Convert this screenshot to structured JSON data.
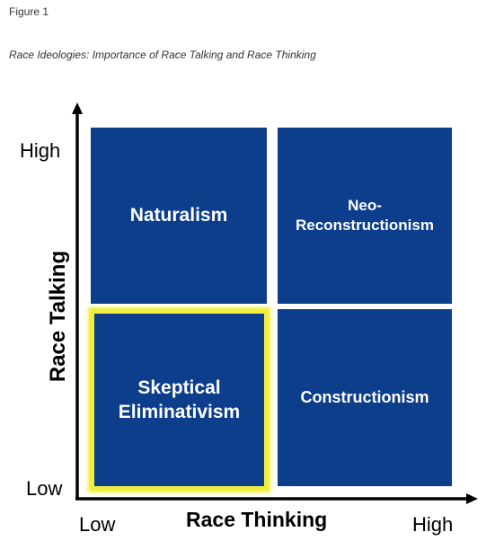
{
  "figure_label": "Figure 1",
  "caption": "Race Ideologies: Importance of Race Talking and Race Thinking",
  "colors": {
    "quadrant_fill": "#0d3e8c",
    "highlight_border": "#f1ed3c",
    "axis": "#000000"
  },
  "axes": {
    "y_title": "Race Talking",
    "x_title": "Race Thinking",
    "y_high": "High",
    "y_low": "Low",
    "x_low": "Low",
    "x_high": "High"
  },
  "quadrants": {
    "top_left": {
      "label": "Naturalism",
      "highlighted": false
    },
    "top_right": {
      "label_line1": "Neo-",
      "label_line2": "Reconstructionism",
      "highlighted": false
    },
    "bottom_left": {
      "label_line1": "Skeptical",
      "label_line2": "Eliminativism",
      "highlighted": true
    },
    "bottom_right": {
      "label": "Constructionism",
      "highlighted": false
    }
  }
}
